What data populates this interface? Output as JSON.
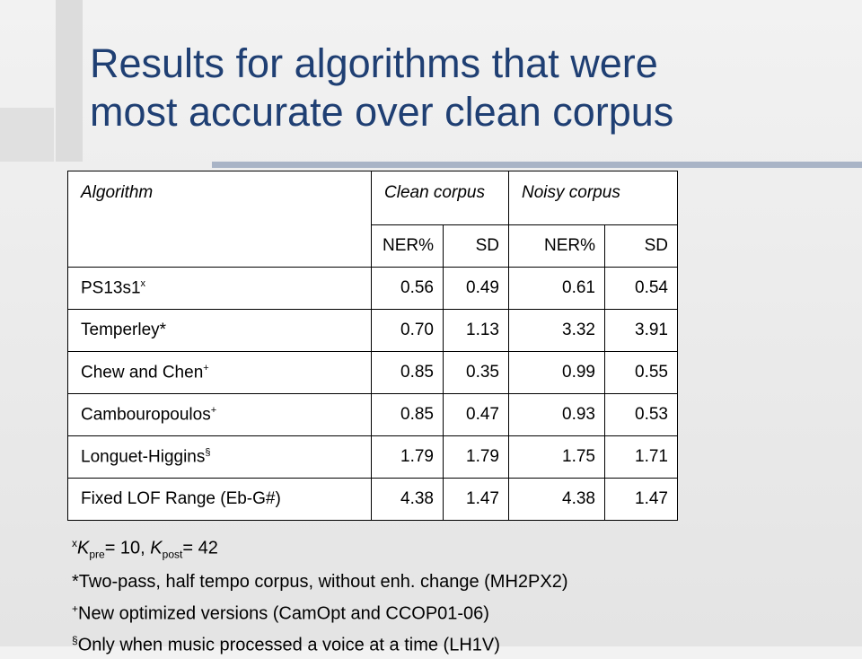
{
  "title": {
    "line1": "Results for algorithms that were",
    "line2": "most accurate over clean corpus"
  },
  "table": {
    "header": {
      "algorithm": "Algorithm",
      "clean": "Clean corpus",
      "noisy": "Noisy corpus"
    },
    "subheader": [
      "NER%",
      "SD",
      "NER%",
      "SD"
    ],
    "rows": [
      {
        "name": "PS13s1",
        "mark": "x",
        "values": [
          "0.56",
          "0.49",
          "0.61",
          "0.54"
        ]
      },
      {
        "name": "Temperley*",
        "values": [
          "0.70",
          "1.13",
          "3.32",
          "3.91"
        ]
      },
      {
        "name": "Chew and Chen",
        "mark": "+",
        "values": [
          "0.85",
          "0.35",
          "0.99",
          "0.55"
        ]
      },
      {
        "name": "Cambouropoulos",
        "mark": "+",
        "values": [
          "0.85",
          "0.47",
          "0.93",
          "0.53"
        ]
      },
      {
        "name": "Longuet-Higgins",
        "mark": "§",
        "values": [
          "1.79",
          "1.79",
          "1.75",
          "1.71"
        ]
      },
      {
        "name": "Fixed LOF Range (Eb-G#)",
        "values": [
          "4.38",
          "1.47",
          "4.38",
          "1.47"
        ]
      }
    ]
  },
  "footnotes": [
    {
      "mark": "x",
      "var1": "K",
      "sub1": "pre",
      "text1": "= 10, ",
      "var2": "K",
      "sub2": "post",
      "text2": "= 42"
    },
    {
      "text": "*Two-pass, half tempo corpus, without enh. change (MH2PX2)"
    },
    {
      "mark": "+",
      "text": "New optimized versions (CamOpt and CCOP01-06)"
    },
    {
      "mark": "§",
      "text": "Only when music processed a voice at a time (LH1V)"
    }
  ]
}
